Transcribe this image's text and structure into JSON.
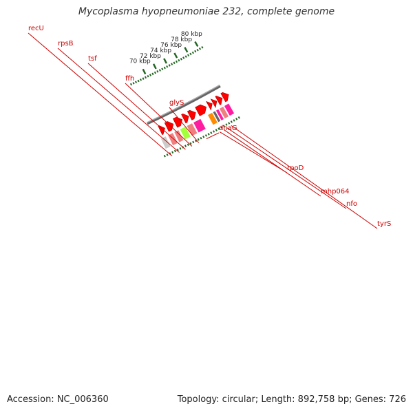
{
  "title": "Mycoplasma hyopneumoniae 232, complete genome",
  "footer": {
    "accession": "Accession: NC_006360",
    "summary": "Topology: circular; Length: 892,758 bp; Genes: 726"
  },
  "colors": {
    "backbone": "#777777",
    "cds": "#ff0000",
    "label_line": "#cc0000",
    "label_text": "#cc0000",
    "tick": "#226622",
    "tick_label": "#222222"
  },
  "genes": [
    {
      "name": "recU",
      "color": "#cccccc",
      "label": true
    },
    {
      "name": "rpsB",
      "color": "#f08080",
      "label": true
    },
    {
      "name": "tsf",
      "color": "#f08080",
      "label": true
    },
    {
      "name": "ffh",
      "color": "#a3ff3c",
      "label": true
    },
    {
      "name": "glyS",
      "color": "#f08080",
      "label": true
    },
    {
      "name": "dnaG",
      "color": "#ff1ca0",
      "label": true
    },
    {
      "name": "rpoD",
      "color": "#ff8c00",
      "label": true
    },
    {
      "name": "mhp064",
      "color": "#666666",
      "label": true
    },
    {
      "name": "nfo",
      "color": "#ff1ca0",
      "label": true
    },
    {
      "name": "tyrS",
      "color": "#f08080",
      "label": true
    },
    {
      "name": "",
      "color": "#ff1ca0",
      "label": false
    }
  ],
  "scale": {
    "labels": [
      "70 kbp",
      "72 kbp",
      "74 kbp",
      "76 kbp",
      "78 kbp",
      "80 kbp"
    ]
  }
}
